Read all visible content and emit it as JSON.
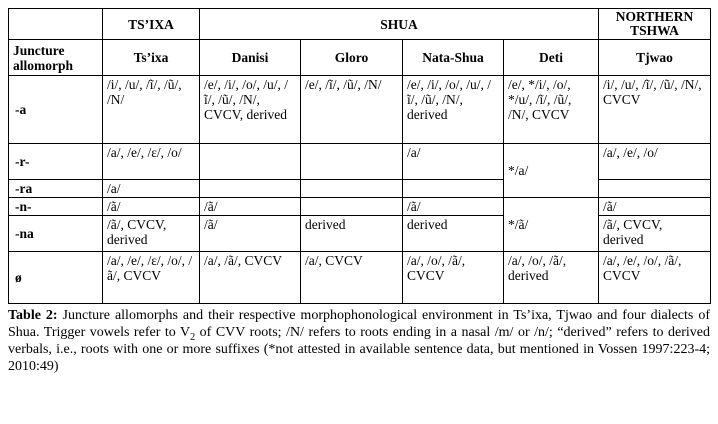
{
  "header": {
    "tsixa_group": "TS’IXA",
    "shua_group": "SHUA",
    "northern_group": "NORTHERN TSHWA",
    "juncture_label": "Juncture allomorph",
    "col_tsixa": "Ts’ixa",
    "col_danisi": "Danisi",
    "col_gloro": "Gloro",
    "col_natashua": "Nata-Shua",
    "col_deti": "Deti",
    "col_tjwao": "Tjwao"
  },
  "rows": {
    "a": {
      "label": "-a",
      "tsixa": "/i/, /u/, /ĩ/, /ũ/, /N/",
      "danisi": "/e/, /i/, /o/, /u/, /ĩ/, /ũ/, /N/, CVCV, derived",
      "gloro": "/e/, /ĩ/, /ũ/, /N/",
      "natashua": "/e/, /i/, /o/, /u/, /ĩ/, /ũ/, /N/, derived",
      "deti": "/e/, */i/, /o/, */u/, /ĩ/, /ũ/, /N/, CVCV",
      "tjwao": "/i/, /u/, /ĩ/, /ũ/, /N/, CVCV"
    },
    "r": {
      "label": "-r-",
      "tsixa": "/a/, /e/, /ɛ/, /o/",
      "natashua": "/a/",
      "tjwao": "/a/, /e/, /o/"
    },
    "deti_r_ra": "*/a/",
    "ra": {
      "label": "-ra",
      "tsixa": "/a/"
    },
    "n": {
      "label": "-n-",
      "tsixa": "/ã/",
      "danisi": "/ã/",
      "natashua": "/ã/",
      "tjwao": "/ã/"
    },
    "deti_n_na": "*/ã/",
    "na": {
      "label": "-na",
      "tsixa": "/ã/, CVCV, derived",
      "danisi": "/ã/",
      "gloro": "derived",
      "natashua": "derived",
      "tjwao": "/ã/, CVCV, derived"
    },
    "zero": {
      "label": "ø",
      "tsixa": "/a/, /e/, /ɛ/, /o/, /ã/, CVCV",
      "danisi": "/a/, /ã/, CVCV",
      "gloro": "/a/, CVCV",
      "natashua": "/a/, /o/, /ã/, CVCV",
      "deti": "/a/, /o/, /ã/, derived",
      "tjwao": "/a/, /e/, /o/, /ã/, CVCV"
    }
  },
  "caption": {
    "label": "Table 2:",
    "text_before_sub": " Juncture allomorphs and their respective morphophonological environment in Ts’ixa, Tjwao and four dialects of Shua. Trigger vowels refer to V",
    "sub": "2",
    "text_after_sub": " of CVV roots; /N/ refers to roots ending in a nasal /m/ or /n/; “derived” refers to derived verbals, i.e., roots with one or more suffixes (*not attested in available sentence data, but mentioned in Vossen 1997:223-4; 2010:49)"
  }
}
